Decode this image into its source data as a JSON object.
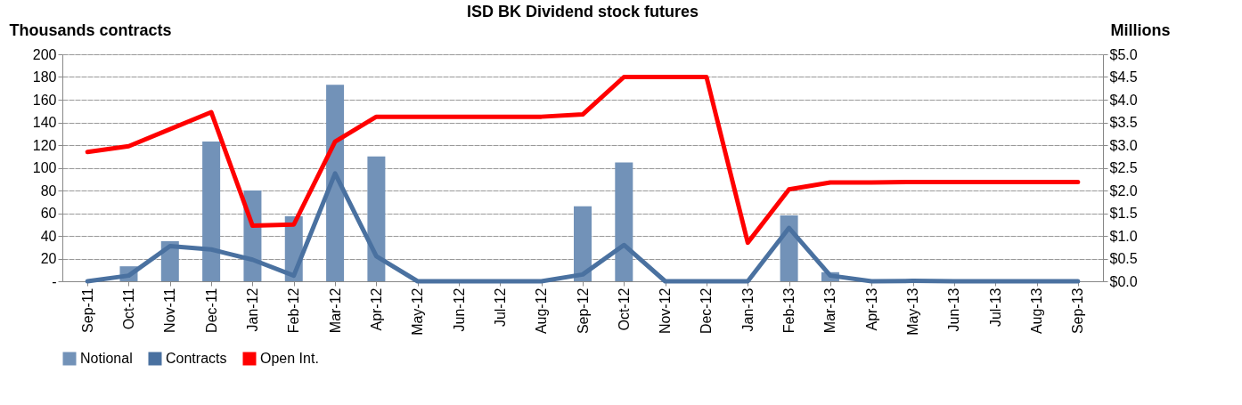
{
  "chart_data": {
    "type": "bar",
    "title": "ISD BK Dividend stock futures",
    "ylabel": "Thousands contracts",
    "y2label": "Millions",
    "categories": [
      "Sep-11",
      "Oct-11",
      "Nov-11",
      "Dec-11",
      "Jan-12",
      "Feb-12",
      "Mar-12",
      "Apr-12",
      "May-12",
      "Jun-12",
      "Jul-12",
      "Aug-12",
      "Sep-12",
      "Oct-12",
      "Nov-12",
      "Dec-12",
      "Jan-13",
      "Feb-13",
      "Mar-13",
      "Apr-13",
      "May-13",
      "Jun-13",
      "Jul-13",
      "Aug-13",
      "Sep-13"
    ],
    "series": [
      {
        "name": "Notional",
        "axis": "y2",
        "color": "#7292b8",
        "values": [
          0,
          0.33,
          0.88,
          3.08,
          2.0,
          1.43,
          4.33,
          2.75,
          0,
          0,
          0,
          0,
          1.65,
          2.62,
          0,
          0,
          0,
          1.45,
          0.2,
          0,
          0,
          0,
          0,
          0,
          0
        ]
      },
      {
        "name": "Contracts",
        "type": "line",
        "color": "#4a71a0",
        "values": [
          0,
          5,
          31,
          28,
          19,
          5,
          95,
          22,
          0,
          0,
          0,
          0,
          6,
          32,
          0,
          0,
          0,
          47,
          5,
          0,
          0.3,
          0,
          0,
          0,
          0
        ]
      },
      {
        "name": "Open Int.",
        "type": "line",
        "color": "#ff0000",
        "values": [
          114,
          119,
          134,
          149,
          49,
          50,
          123,
          145,
          145,
          145,
          145,
          145,
          147,
          180,
          180,
          180,
          34,
          81,
          87,
          87,
          87.5,
          87.5,
          87.5,
          87.5,
          87.5
        ]
      }
    ],
    "ylim": [
      0,
      200
    ],
    "yticks": [
      {
        "value": 0,
        "label": "-"
      },
      20,
      40,
      60,
      80,
      100,
      120,
      140,
      160,
      180,
      200
    ],
    "y2lim": [
      0,
      5
    ],
    "y2ticks": [
      {
        "value": 0,
        "label": "$0.0"
      },
      {
        "value": 0.5,
        "label": "$0.5"
      },
      {
        "value": 1,
        "label": "$1.0"
      },
      {
        "value": 1.5,
        "label": "$1.5"
      },
      {
        "value": 2,
        "label": "$2.0"
      },
      {
        "value": 2.5,
        "label": "$2.5"
      },
      {
        "value": 3,
        "label": "$3.0"
      },
      {
        "value": 3.5,
        "label": "$3.5"
      },
      {
        "value": 4,
        "label": "$4.0"
      },
      {
        "value": 4.5,
        "label": "$4.5"
      },
      {
        "value": 5,
        "label": "$5.0"
      }
    ],
    "grid": "y",
    "legend": "bottom",
    "marker": "none",
    "line_style": "solid"
  }
}
